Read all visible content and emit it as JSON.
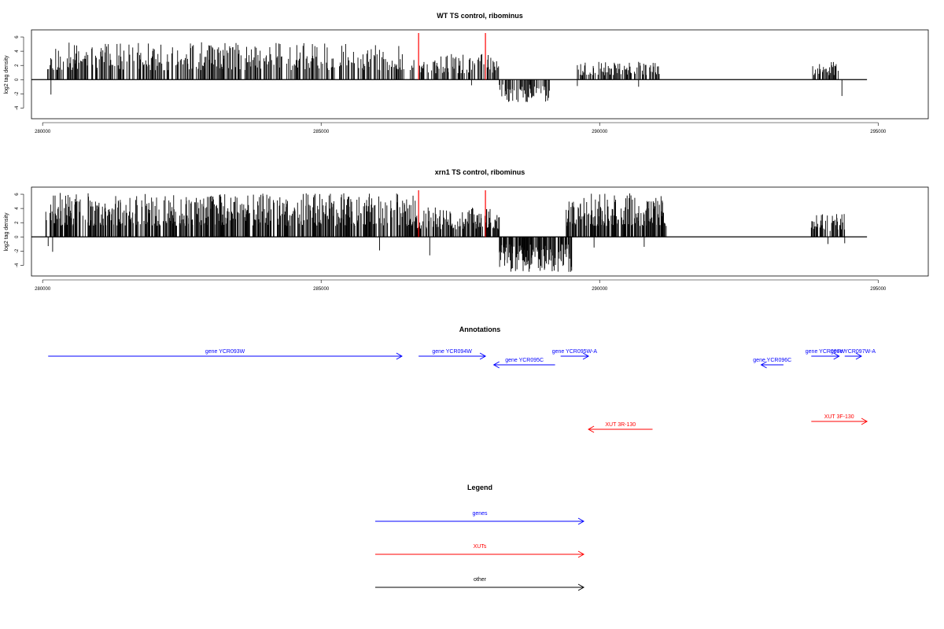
{
  "chart_data": [
    {
      "type": "bar",
      "title": "WT TS control, ribominus",
      "xlabel": "",
      "ylabel": "log2 tag density",
      "xlim": [
        279800,
        295900
      ],
      "ylim": [
        -5.5,
        7
      ],
      "xticks": [
        280000,
        285000,
        290000,
        295000
      ],
      "yticks": [
        -4,
        -2,
        0,
        2,
        4,
        6
      ],
      "baseline": [
        279800,
        294800
      ],
      "markers": [
        {
          "x": 286750,
          "color": "#ff0000"
        },
        {
          "x": 287950,
          "color": "#ff0000"
        }
      ],
      "positive_regions": [
        [
          280080,
          286500,
          5.3
        ],
        [
          286600,
          288200,
          3.6
        ],
        [
          289600,
          291100,
          2.5
        ],
        [
          293800,
          294300,
          2.5
        ]
      ],
      "negative_regions": [
        [
          288200,
          289100,
          -3.3
        ]
      ],
      "sparse_negatives": [
        [
          280150,
          -2.1
        ],
        [
          287700,
          -0.8
        ],
        [
          289600,
          -0.9
        ],
        [
          290700,
          -1.0
        ],
        [
          294350,
          -2.3
        ]
      ],
      "seed": 11,
      "density": 1.0
    },
    {
      "type": "bar",
      "title": "xrn1 TS control, ribominus",
      "xlabel": "",
      "ylabel": "log2 tag density",
      "xlim": [
        279800,
        295900
      ],
      "ylim": [
        -5.5,
        7
      ],
      "xticks": [
        280000,
        285000,
        290000,
        295000
      ],
      "yticks": [
        -4,
        -2,
        0,
        2,
        4,
        6
      ],
      "baseline": [
        279800,
        294800
      ],
      "markers": [
        {
          "x": 286750,
          "color": "#ff0000"
        },
        {
          "x": 287950,
          "color": "#ff0000"
        }
      ],
      "positive_regions": [
        [
          280050,
          286700,
          6.2
        ],
        [
          286700,
          288200,
          4.2
        ],
        [
          289400,
          291200,
          6.2
        ],
        [
          293800,
          294400,
          3.3
        ]
      ],
      "negative_regions": [
        [
          288200,
          289500,
          -5.0
        ]
      ],
      "sparse_negatives": [
        [
          280100,
          -1.3
        ],
        [
          280180,
          -2.1
        ],
        [
          286050,
          -1.9
        ],
        [
          286950,
          -2.6
        ],
        [
          289900,
          -1.5
        ],
        [
          290800,
          -1.4
        ],
        [
          294100,
          -1.0
        ],
        [
          294400,
          -0.9
        ]
      ],
      "seed": 23,
      "density": 1.6
    }
  ],
  "annotations": {
    "title": "Annotations",
    "features": [
      {
        "label": "gene YCR093W",
        "start": 280100,
        "end": 286450,
        "kind": "gene",
        "row": 0
      },
      {
        "label": "gene YCR094W",
        "start": 286750,
        "end": 287950,
        "kind": "gene",
        "row": 0
      },
      {
        "label": "gene YCR095C",
        "start": 289200,
        "end": 288100,
        "kind": "gene",
        "row": 1
      },
      {
        "label": "gene YCR095W-A",
        "start": 289300,
        "end": 289800,
        "kind": "gene",
        "row": 0
      },
      {
        "label": "gene YCR096C",
        "start": 293300,
        "end": 292900,
        "kind": "gene",
        "row": 1
      },
      {
        "label": "gene YCR097W",
        "start": 293800,
        "end": 294300,
        "kind": "gene",
        "row": 0
      },
      {
        "label": "gene YCR097W-A",
        "start": 294400,
        "end": 294700,
        "kind": "gene",
        "row": 0
      },
      {
        "label": "XUT 3R-130",
        "start": 290950,
        "end": 289800,
        "kind": "xut",
        "row": 2
      },
      {
        "label": "XUT 3F-130",
        "start": 293800,
        "end": 294800,
        "kind": "xut",
        "row": 3
      }
    ]
  },
  "legend": {
    "title": "Legend",
    "items": [
      {
        "label": "genes",
        "kind": "gene"
      },
      {
        "label": "XUTs",
        "kind": "xut"
      },
      {
        "label": "other",
        "kind": "other"
      }
    ]
  },
  "colors": {
    "gene": "#0000ff",
    "xut": "#ff0000",
    "other": "#000000"
  }
}
